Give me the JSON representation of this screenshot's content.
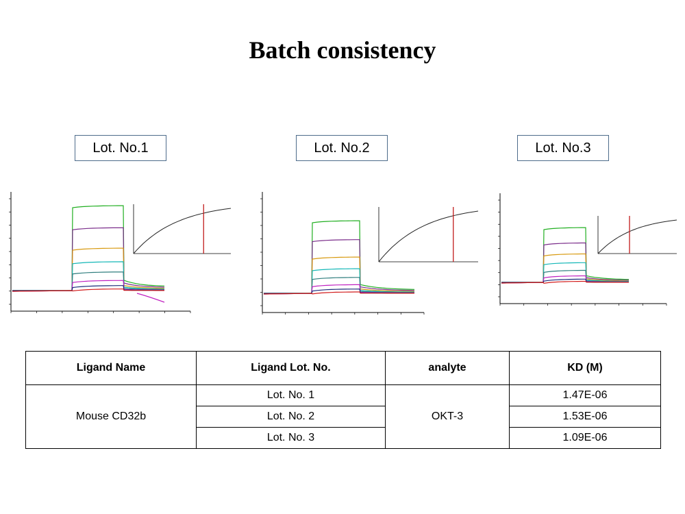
{
  "title": "Batch consistency",
  "lots": [
    "Lot. No.1",
    "Lot. No.2",
    "Lot. No.3"
  ],
  "colors": {
    "green": "#1fae1f",
    "purple": "#7a2c8a",
    "orange": "#d89a10",
    "cyan": "#13b7b7",
    "teal": "#2e7d7d",
    "magenta": "#c020c0",
    "navy": "#1b2a7a",
    "red": "#d21b1b",
    "black": "#222222"
  },
  "chart_data": [
    {
      "type": "line",
      "name": "Lot. No.1",
      "note": "sensorgram with steady-state affinity inset",
      "relative_responses": [
        1.0,
        0.74,
        0.5,
        0.34,
        0.22,
        0.12,
        0.06,
        0.02
      ],
      "inset": {
        "type": "line",
        "curve": "saturation",
        "marker_fraction": 0.72
      }
    },
    {
      "type": "line",
      "name": "Lot. No.2",
      "note": "sensorgram with steady-state affinity inset",
      "relative_responses": [
        1.0,
        0.74,
        0.5,
        0.34,
        0.22,
        0.12,
        0.06,
        0.02
      ],
      "inset": {
        "type": "line",
        "curve": "saturation",
        "marker_fraction": 0.75
      }
    },
    {
      "type": "line",
      "name": "Lot. No.3",
      "note": "sensorgram with steady-state affinity inset",
      "relative_responses": [
        1.0,
        0.72,
        0.52,
        0.36,
        0.22,
        0.12,
        0.06,
        0.02
      ],
      "inset": {
        "type": "line",
        "curve": "saturation",
        "marker_fraction": 0.4
      }
    }
  ],
  "table": {
    "headers": [
      "Ligand Name",
      "Ligand Lot. No.",
      "analyte",
      "KD (M)"
    ],
    "ligand_name": "Mouse CD32b",
    "analyte": "OKT-3",
    "rows": [
      {
        "lot": "Lot. No. 1",
        "kd": "1.47E-06"
      },
      {
        "lot": "Lot. No. 2",
        "kd": "1.53E-06"
      },
      {
        "lot": "Lot. No. 3",
        "kd": "1.09E-06"
      }
    ]
  }
}
